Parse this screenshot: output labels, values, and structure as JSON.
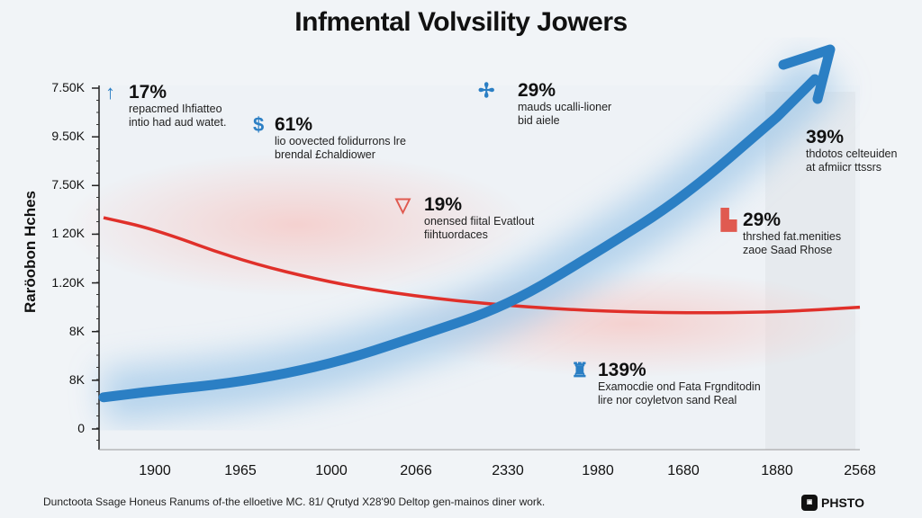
{
  "chart_data": {
    "type": "line",
    "title": "Infmental Volvsility Jowers",
    "xlabel": "",
    "ylabel": "Raröobon Hches",
    "categories": [
      "1900",
      "1965",
      "1000",
      "2066",
      "2330",
      "1980",
      "1680",
      "1880",
      "2568"
    ],
    "y_tick_labels": [
      "0",
      "8K",
      "8K",
      "1.20K",
      "1 20K",
      "7.50K",
      "9.50K",
      "7.50K"
    ],
    "ylim": [
      0,
      7
    ],
    "grid": false,
    "series": [
      {
        "name": "red",
        "color": "#e0302a",
        "values": [
          4.1,
          3.46,
          3.0,
          2.72,
          2.53,
          2.42,
          2.38,
          2.4,
          2.5
        ]
      },
      {
        "name": "blue",
        "color": "#2b7fc4",
        "values": [
          0.78,
          0.96,
          1.33,
          1.89,
          2.53,
          3.64,
          4.75,
          6.41,
          7.4
        ]
      }
    ],
    "annotations": [
      {
        "pct": "17%",
        "line1": "repacmed Ihfiatteo",
        "line2": "intio had aud watet.",
        "icon": "up-arrow-icon",
        "color": "#2b7fc4"
      },
      {
        "pct": "61%",
        "line1": "lio oovected folidurrons lre",
        "line2": "brendal £chaldiower",
        "icon": "dollar-icon",
        "color": "#2b7fc4"
      },
      {
        "pct": "29%",
        "line1": "mauds ucalli-lioner",
        "line2": "bid aiele",
        "icon": "crane-icon",
        "color": "#2b7fc4"
      },
      {
        "pct": "19%",
        "line1": "onensed fiital Evatlout",
        "line2": "fiihtuordaces",
        "icon": "glass-icon",
        "color": "#e05a50"
      },
      {
        "pct": "39%",
        "line1": "thdotos celteuiden",
        "line2": "at afmiicr ttssrs",
        "icon": "",
        "color": ""
      },
      {
        "pct": "29%",
        "line1": "thrshed fat.menities",
        "line2": "zaoe Saad Rhose",
        "icon": "bucket-icon",
        "color": "#e05a50"
      },
      {
        "pct": "139%",
        "line1": "Examocdie ond Fata Frgnditodin",
        "line2": "lire nor coyletvon sand Real",
        "icon": "building-icon",
        "color": "#2b7fc4"
      }
    ]
  },
  "footer": "Dunctoota Ssage Honeus Ranums of-the elloetive MC. 81/ Qrutyd X28'90 Deltop gen-mainos diner work.",
  "logo": "PHSTO"
}
